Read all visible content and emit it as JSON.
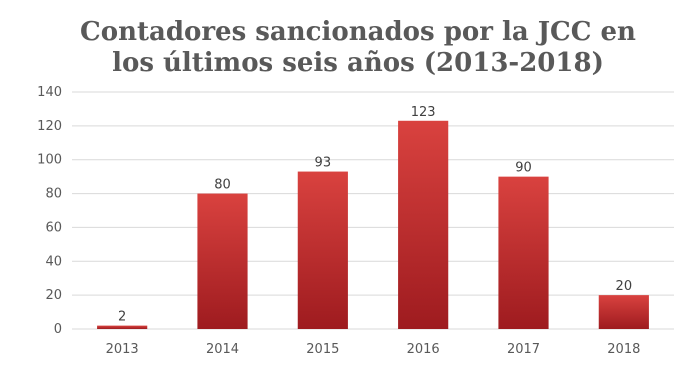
{
  "chart_data": {
    "type": "bar",
    "title_lines": [
      "Contadores sancionados por la JCC en",
      "los últimos seis años (2013-2018)"
    ],
    "categories": [
      "2013",
      "2014",
      "2015",
      "2016",
      "2017",
      "2018"
    ],
    "values": [
      2,
      80,
      93,
      123,
      90,
      20
    ],
    "data_labels": [
      "2",
      "80",
      "93",
      "123",
      "90",
      "20"
    ],
    "y_ticks": [
      "0",
      "20",
      "40",
      "60",
      "80",
      "100",
      "120",
      "140"
    ],
    "ylim": [
      0,
      140
    ],
    "grid": true,
    "legend": "none",
    "colors": {
      "bar_top": "#d9423f",
      "bar_bottom": "#9e1b1f",
      "grid": "#d9d9d9",
      "text": "#595959",
      "title": "#595959"
    }
  }
}
